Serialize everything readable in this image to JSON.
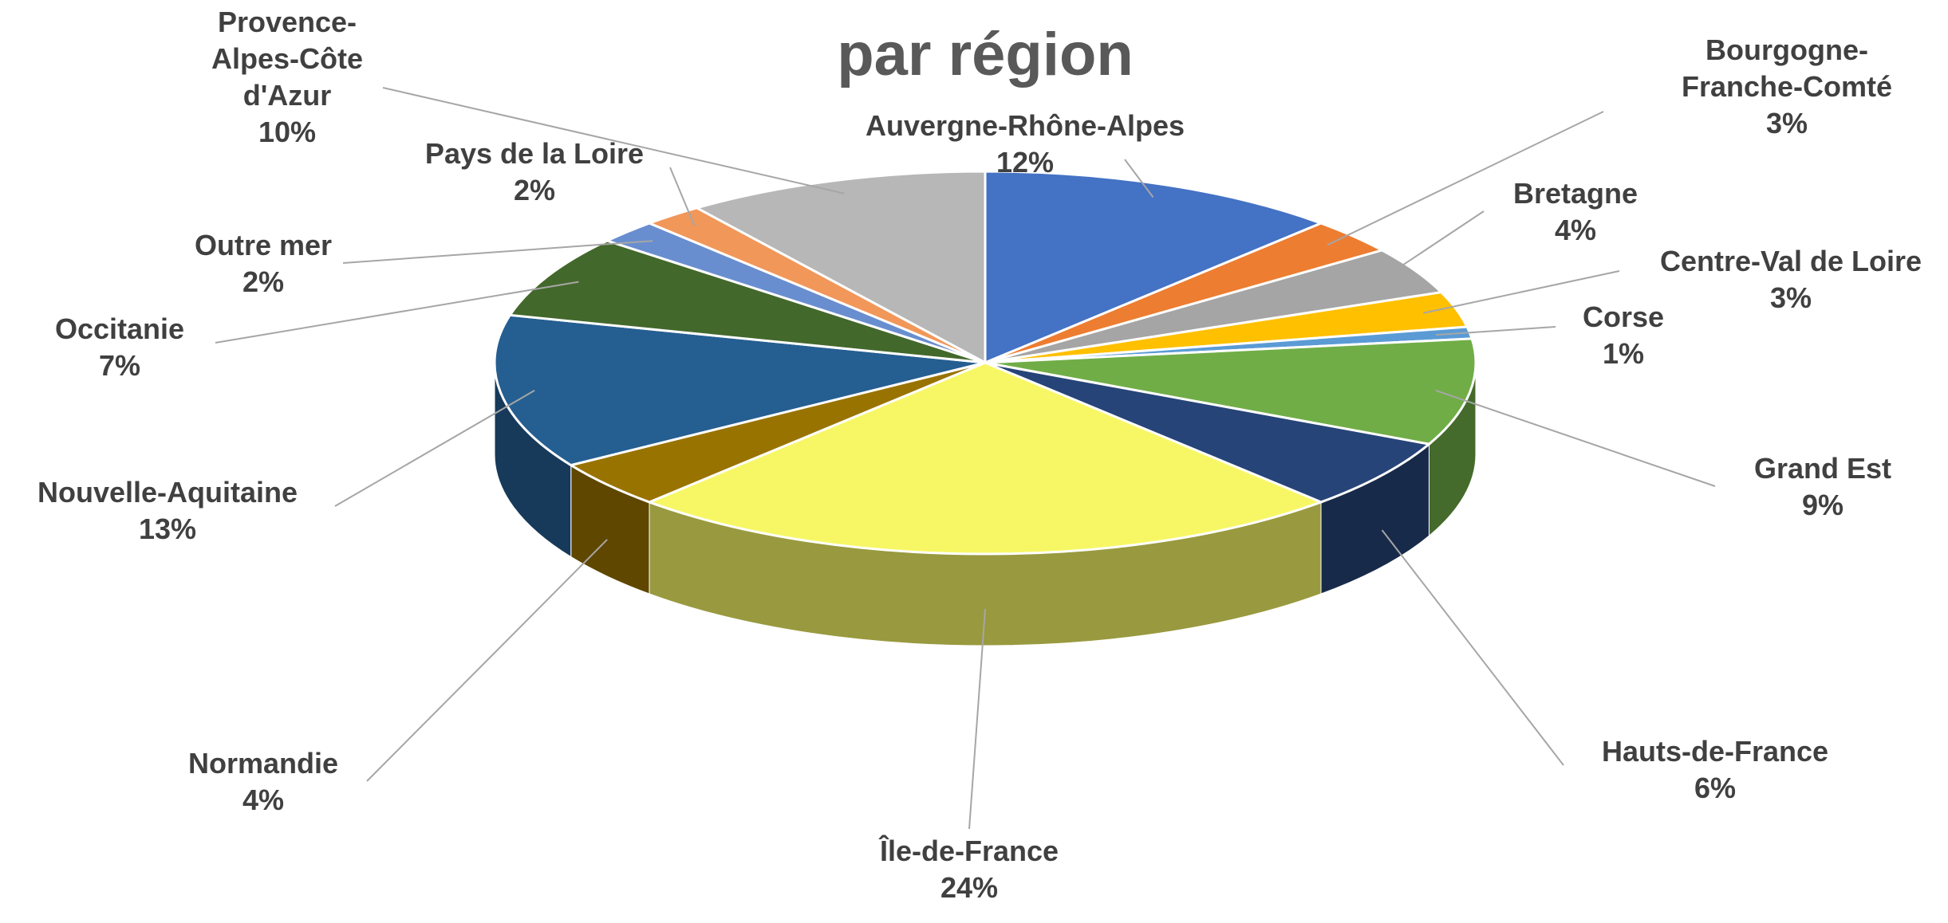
{
  "chart_data": {
    "type": "pie3d",
    "title": "par région",
    "categories": [
      "Auvergne-Rhône-Alpes",
      "Bourgogne-Franche-Comté",
      "Bretagne",
      "Centre-Val de Loire",
      "Corse",
      "Grand Est",
      "Hauts-de-France",
      "Île-de-France",
      "Normandie",
      "Nouvelle-Aquitaine",
      "Occitanie",
      "Outre mer",
      "Pays de la Loire",
      "Provence-Alpes-Côte d'Azur"
    ],
    "values": [
      12,
      3,
      4,
      3,
      1,
      9,
      6,
      24,
      4,
      13,
      7,
      2,
      2,
      10
    ],
    "value_labels": [
      "12%",
      "3%",
      "4%",
      "3%",
      "1%",
      "9%",
      "6%",
      "24%",
      "4%",
      "13%",
      "7%",
      "2%",
      "2%",
      "10%"
    ],
    "colors": [
      "#4472c4",
      "#ed7d31",
      "#a5a5a5",
      "#ffc000",
      "#5b9bd5",
      "#70ad47",
      "#264478",
      "#f7f766",
      "#997300",
      "#255e91",
      "#43682b",
      "#698ed0",
      "#f1975a",
      "#b7b7b7"
    ]
  }
}
